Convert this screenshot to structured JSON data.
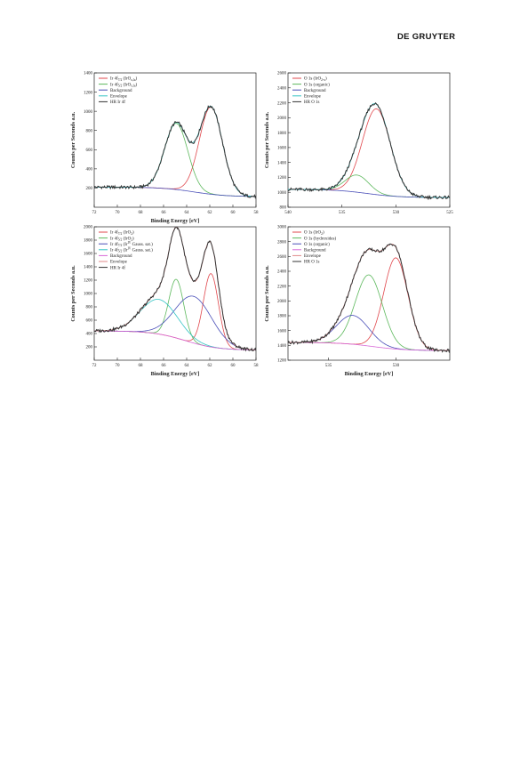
{
  "header": {
    "publisher": "DE GRUYTER"
  },
  "chart_data": [
    {
      "type": "line",
      "xlabel": "Binding Energy [eV]",
      "ylabel": "Counts per Seconds a.u.",
      "xlim": [
        72,
        58
      ],
      "ylim": [
        0,
        1400
      ],
      "xticks": [
        72,
        70,
        68,
        66,
        64,
        62,
        60,
        58
      ],
      "yticks": [
        200,
        400,
        600,
        800,
        1000,
        1200,
        1400
      ],
      "legend_position": "top-left",
      "series": [
        {
          "name": "Ir 4f7/2 (IrOx,la)",
          "label_main": "Ir 4f",
          "label_sub": "7/2",
          "label_tail": " (IrO",
          "label_sub2": "x,la",
          "label_end": ")",
          "color": "#e0474c",
          "kind": "peak",
          "center": 61.9,
          "amplitude": 910,
          "width": 1.0
        },
        {
          "name": "Ir 4f5/2 (IrOx,la)",
          "label_main": "Ir 4f",
          "label_sub": "5/2",
          "label_tail": " (IrO",
          "label_sub2": "x,la",
          "label_end": ")",
          "color": "#5cb85c",
          "kind": "peak",
          "center": 64.9,
          "amplitude": 690,
          "width": 1.0
        },
        {
          "name": "Background",
          "label_main": "Background",
          "color": "#4a4fb8",
          "kind": "background",
          "left": 210,
          "right": 110
        },
        {
          "name": "Envelope",
          "label_main": "Envelope",
          "color": "#33c4c4",
          "kind": "envelope"
        },
        {
          "name": "HR Ir 4f",
          "label_main": "HR Ir 4f",
          "color": "#333333",
          "kind": "data"
        }
      ]
    },
    {
      "type": "line",
      "xlabel": "",
      "ylabel": "Counts per Seconds a.u.",
      "xlim": [
        540,
        525
      ],
      "ylim": [
        800,
        2600
      ],
      "xticks": [
        540,
        535,
        530,
        525
      ],
      "yticks": [
        800,
        1000,
        1200,
        1400,
        1600,
        1800,
        2000,
        2200,
        2400,
        2600
      ],
      "legend_position": "top-left",
      "series": [
        {
          "name": "O 1s (IrO2-x)",
          "label_main": "O 1s (IrO",
          "label_sub": "2-x",
          "label_end": ")",
          "color": "#e0474c",
          "kind": "peak",
          "center": 531.8,
          "amplitude": 1150,
          "width": 1.3
        },
        {
          "name": "O 1s (organic)",
          "label_main": "O 1s (organic)",
          "color": "#5cb85c",
          "kind": "peak",
          "center": 533.6,
          "amplitude": 230,
          "width": 1.1
        },
        {
          "name": "Background",
          "label_main": "Background",
          "color": "#4a4fb8",
          "kind": "background",
          "left": 1040,
          "right": 930
        },
        {
          "name": "Envelope",
          "label_main": "Envelope",
          "color": "#33c4c4",
          "kind": "envelope"
        },
        {
          "name": "HR O 1s",
          "label_main": "HR O 1s",
          "color": "#333333",
          "kind": "data"
        }
      ]
    },
    {
      "type": "line",
      "xlabel": "Binding Energy [eV]",
      "ylabel": "Counts per Seconds a.u.",
      "xlim": [
        72,
        58
      ],
      "ylim": [
        0,
        2000
      ],
      "xticks": [
        72,
        70,
        68,
        66,
        64,
        62,
        60,
        58
      ],
      "yticks": [
        200,
        400,
        600,
        800,
        1000,
        1200,
        1400,
        1600,
        1800,
        2000
      ],
      "legend_position": "top-left",
      "series": [
        {
          "name": "Ir 4f7/2 (IrO2)",
          "label_main": "Ir 4f",
          "label_sub": "7/2",
          "label_tail": " (IrO",
          "label_sub2": "2",
          "label_end": ")",
          "color": "#e0474c",
          "kind": "peak",
          "center": 61.9,
          "amplitude": 1100,
          "width": 0.65
        },
        {
          "name": "Ir 4f5/2 (IrO2)",
          "label_main": "Ir 4f",
          "label_sub": "5/2",
          "label_tail": " (IrO",
          "label_sub2": "2",
          "label_end": ")",
          "color": "#5cb85c",
          "kind": "peak",
          "center": 64.9,
          "amplitude": 880,
          "width": 0.65
        },
        {
          "name": "Ir 4f7/2 (IrIV Gauss. sat.)",
          "label_main": "Ir 4f",
          "label_sub": "7/2",
          "label_tail": " (Ir",
          "label_sup": "IV",
          "label_end": " Gauss. sat.)",
          "color": "#4a4fb8",
          "kind": "peak",
          "center": 63.4,
          "amplitude": 700,
          "width": 1.6
        },
        {
          "name": "Ir 4f5/2 (IrIV Gauss. sat.)",
          "label_main": "Ir 4f",
          "label_sub": "5/2",
          "label_tail": " (Ir",
          "label_sup": "IV",
          "label_end": " Gauss. sat.)",
          "color": "#33c4c4",
          "kind": "peak",
          "center": 66.4,
          "amplitude": 520,
          "width": 1.6
        },
        {
          "name": "Background",
          "label_main": "Background",
          "color": "#d86ad8",
          "kind": "background",
          "left": 440,
          "right": 150
        },
        {
          "name": "Envelope",
          "label_main": "Envelope",
          "color": "#e08a8a",
          "kind": "envelope"
        },
        {
          "name": "HR Ir 4f",
          "label_main": "HR Ir 4f",
          "color": "#333333",
          "kind": "data"
        }
      ]
    },
    {
      "type": "line",
      "xlabel": "Binding Energy [eV]",
      "ylabel": "Counts per Seconds a.u.",
      "xlim": [
        538,
        526
      ],
      "ylim": [
        1200,
        3000
      ],
      "xticks": [
        535,
        530
      ],
      "yticks": [
        1200,
        1400,
        1600,
        1800,
        2000,
        2200,
        2400,
        2600,
        2800,
        3000
      ],
      "legend_position": "top-left",
      "series": [
        {
          "name": "O 1s (IrO2)",
          "label_main": "O 1s (IrO",
          "label_sub": "2",
          "label_end": ")",
          "color": "#e0474c",
          "kind": "peak",
          "center": 530.0,
          "amplitude": 1230,
          "width": 0.9
        },
        {
          "name": "O 1s (hydroxides)",
          "label_main": "O 1s (hydroxides)",
          "color": "#5cb85c",
          "kind": "peak",
          "center": 532.0,
          "amplitude": 960,
          "width": 1.0
        },
        {
          "name": "O 1s (organic)",
          "label_main": "O 1s (organic)",
          "color": "#4a4fb8",
          "kind": "peak",
          "center": 533.2,
          "amplitude": 390,
          "width": 1.2
        },
        {
          "name": "Background",
          "label_main": "Background",
          "color": "#d86ad8",
          "kind": "background",
          "left": 1440,
          "right": 1330
        },
        {
          "name": "Envelope",
          "label_main": "Envelope",
          "color": "#e08a8a",
          "kind": "envelope"
        },
        {
          "name": "HR O 1s",
          "label_main": "HR O 1s",
          "color": "#333333",
          "kind": "data"
        }
      ]
    }
  ]
}
